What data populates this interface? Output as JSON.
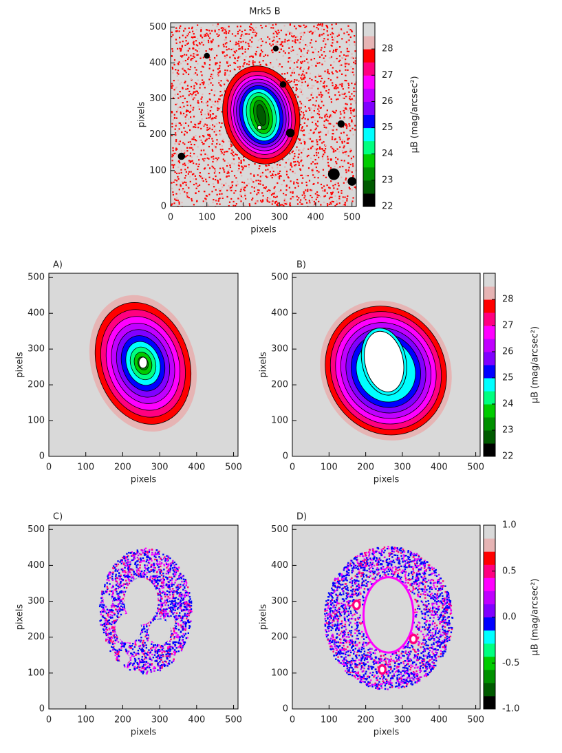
{
  "chart_data": [
    {
      "type": "image",
      "title": "Mrk5 B",
      "xlabel": "pixels",
      "ylabel": "pixels",
      "xlim": [
        0,
        512
      ],
      "ylim": [
        0,
        512
      ],
      "xticks": [
        0,
        100,
        200,
        300,
        400,
        500
      ],
      "yticks": [
        0,
        100,
        200,
        300,
        400,
        500
      ],
      "colorbar": {
        "label": "μB (mag/arcsec²)",
        "lim": [
          22,
          29
        ],
        "ticks": [
          22,
          23,
          24,
          25,
          26,
          27,
          28
        ],
        "colors": [
          "#000000",
          "#005a00",
          "#009000",
          "#00cc00",
          "#00ff80",
          "#00ffff",
          "#0000ff",
          "#8000ff",
          "#c000ff",
          "#ff00ff",
          "#ff0080",
          "#ff0000",
          "#e6b4b4",
          "#d9d9d9"
        ]
      }
    },
    {
      "type": "image",
      "title": "A)",
      "xlabel": "pixels",
      "ylabel": "pixels",
      "xlim": [
        0,
        512
      ],
      "ylim": [
        0,
        512
      ],
      "xticks": [
        0,
        100,
        200,
        300,
        400,
        500
      ],
      "yticks": [
        0,
        100,
        200,
        300,
        400,
        500
      ]
    },
    {
      "type": "image",
      "title": "B)",
      "xlabel": "pixels",
      "ylabel": "pixels",
      "xlim": [
        0,
        512
      ],
      "ylim": [
        0,
        512
      ],
      "xticks": [
        0,
        100,
        200,
        300,
        400,
        500
      ],
      "yticks": [
        0,
        100,
        200,
        300,
        400,
        500
      ],
      "colorbar": {
        "label": "μB (mag/arcsec²)",
        "lim": [
          22,
          29
        ],
        "ticks": [
          22,
          23,
          24,
          25,
          26,
          27,
          28
        ],
        "colors": [
          "#000000",
          "#005a00",
          "#009000",
          "#00cc00",
          "#00ff80",
          "#00ffff",
          "#0000ff",
          "#8000ff",
          "#c000ff",
          "#ff00ff",
          "#ff0080",
          "#ff0000",
          "#e6b4b4",
          "#d9d9d9"
        ]
      }
    },
    {
      "type": "image",
      "title": "C)",
      "xlabel": "pixels",
      "ylabel": "pixels",
      "xlim": [
        0,
        512
      ],
      "ylim": [
        0,
        512
      ],
      "xticks": [
        0,
        100,
        200,
        300,
        400,
        500
      ],
      "yticks": [
        0,
        100,
        200,
        300,
        400,
        500
      ]
    },
    {
      "type": "image",
      "title": "D)",
      "xlabel": "pixels",
      "ylabel": "pixels",
      "xlim": [
        0,
        512
      ],
      "ylim": [
        0,
        512
      ],
      "xticks": [
        0,
        100,
        200,
        300,
        400,
        500
      ],
      "yticks": [
        0,
        100,
        200,
        300,
        400,
        500
      ],
      "colorbar": {
        "label": "μB (mag/arcsec²)",
        "lim": [
          -1,
          1
        ],
        "ticks": [
          {
            "value": -1,
            "label": "-1.0"
          },
          -0.5,
          {
            "value": 0,
            "label": "0.0"
          },
          0.5,
          {
            "value": 1,
            "label": "1.0"
          }
        ],
        "colors": [
          "#000000",
          "#005a00",
          "#009000",
          "#00cc00",
          "#00ff80",
          "#00ffff",
          "#0000ff",
          "#8000ff",
          "#c000ff",
          "#ff00ff",
          "#ff0080",
          "#ff0000",
          "#e6b4b4",
          "#d9d9d9"
        ]
      }
    }
  ]
}
